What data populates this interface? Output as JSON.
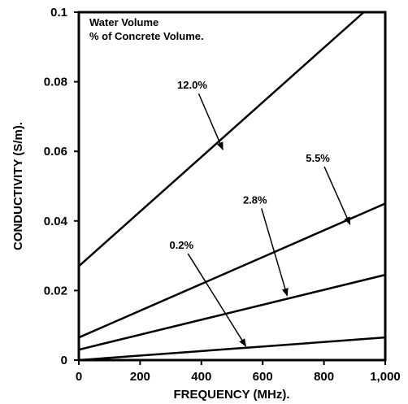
{
  "chart_data": {
    "type": "line",
    "title": "",
    "xlabel": "FREQUENCY (MHz).",
    "ylabel": "CONDUCTIVITY (S/m).",
    "xlim": [
      0,
      1000
    ],
    "ylim": [
      0,
      0.1
    ],
    "x_ticks": [
      "0",
      "200",
      "400",
      "600",
      "800",
      "1,000"
    ],
    "y_ticks": [
      "0",
      "0.02",
      "0.04",
      "0.06",
      "0.08",
      "0.1"
    ],
    "x_tick_values": [
      0,
      200,
      400,
      600,
      800,
      1000
    ],
    "y_tick_values": [
      0,
      0.02,
      0.04,
      0.06,
      0.08,
      0.1
    ],
    "grid": false,
    "legend": {
      "title_line1": "Water Volume",
      "title_line2": "% of Concrete Volume.",
      "placement": "top-left"
    },
    "series": [
      {
        "name": "12.0%",
        "x": [
          0,
          930
        ],
        "y": [
          0.027,
          0.1
        ],
        "label_x": 370,
        "label_y": 0.078,
        "arrow_x": 470,
        "arrow_y": 0.0605
      },
      {
        "name": "5.5%",
        "x": [
          0,
          1000
        ],
        "y": [
          0.0065,
          0.045
        ],
        "label_x": 780,
        "label_y": 0.057,
        "arrow_x": 885,
        "arrow_y": 0.039
      },
      {
        "name": "2.8%",
        "x": [
          0,
          1000
        ],
        "y": [
          0.003,
          0.0245
        ],
        "label_x": 575,
        "label_y": 0.045,
        "arrow_x": 680,
        "arrow_y": 0.0185
      },
      {
        "name": "0.2%",
        "x": [
          0,
          1000
        ],
        "y": [
          0,
          0.0065
        ],
        "label_x": 335,
        "label_y": 0.032,
        "arrow_x": 545,
        "arrow_y": 0.004
      }
    ]
  }
}
